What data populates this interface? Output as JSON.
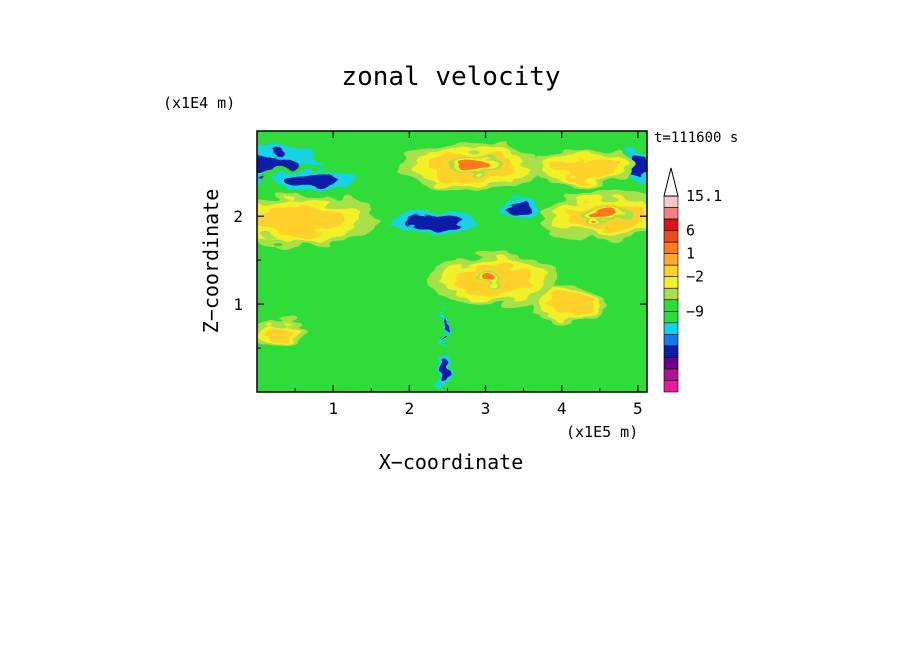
{
  "chart_data": {
    "type": "heatmap",
    "title": "zonal velocity",
    "xlabel": "X−coordinate",
    "ylabel": "Z−coordinate",
    "x_unit": "(x1E5 m)",
    "y_unit": "(x1E4 m)",
    "time_label": "t=111600 s",
    "xlim": [
      0,
      5.12
    ],
    "ylim": [
      0,
      2.97
    ],
    "x_ticks": [
      1,
      2,
      3,
      4,
      5
    ],
    "y_ticks": [
      1,
      2
    ],
    "colorbar": {
      "labels": [
        "15.1",
        "6",
        "1",
        "−2",
        "−9"
      ],
      "levels": [
        -15,
        -12,
        -9,
        -6,
        -3,
        -2,
        -1,
        0,
        1,
        2,
        3,
        4,
        6,
        8,
        10,
        12,
        15.1
      ],
      "colors": [
        "#e8199a",
        "#b0158e",
        "#6a008c",
        "#0a1fa8",
        "#1478f0",
        "#12d4e6",
        "#2fdc3a",
        "#2fdc3a",
        "#a8e04a",
        "#f2f028",
        "#ffd12a",
        "#ffaa2a",
        "#ff7a1c",
        "#f04a1c",
        "#d9161c",
        "#f08282",
        "#f7c6c6"
      ]
    },
    "regions": [
      {
        "value": -6,
        "x": 0.15,
        "z": 2.58,
        "rx": 0.45,
        "rz": 0.13
      },
      {
        "value": -6,
        "x": 0.75,
        "z": 2.42,
        "rx": 0.35,
        "rz": 0.08
      },
      {
        "value": -6,
        "x": 2.3,
        "z": 1.93,
        "rx": 0.35,
        "rz": 0.07
      },
      {
        "value": -6,
        "x": 3.42,
        "z": 2.08,
        "rx": 0.17,
        "rz": 0.07
      },
      {
        "value": -6,
        "x": 5.02,
        "z": 2.6,
        "rx": 0.12,
        "rz": 0.12
      },
      {
        "value": -6,
        "x": 2.46,
        "z": 0.22,
        "rx": 0.06,
        "rz": 0.12
      },
      {
        "value": -6,
        "x": 2.45,
        "z": 0.75,
        "rx": 0.03,
        "rz": 0.12
      },
      {
        "value": 3,
        "x": 2.8,
        "z": 2.56,
        "rx": 0.55,
        "rz": 0.16
      },
      {
        "value": 6,
        "x": 2.85,
        "z": 2.58,
        "rx": 0.2,
        "rz": 0.07
      },
      {
        "value": 3,
        "x": 4.3,
        "z": 2.55,
        "rx": 0.4,
        "rz": 0.12
      },
      {
        "value": 3,
        "x": 0.55,
        "z": 1.95,
        "rx": 0.6,
        "rz": 0.17
      },
      {
        "value": 3,
        "x": 4.55,
        "z": 2.0,
        "rx": 0.5,
        "rz": 0.15
      },
      {
        "value": 6,
        "x": 4.55,
        "z": 2.02,
        "rx": 0.22,
        "rz": 0.06
      },
      {
        "value": 3,
        "x": 3.1,
        "z": 1.28,
        "rx": 0.5,
        "rz": 0.18
      },
      {
        "value": 6,
        "x": 3.05,
        "z": 1.3,
        "rx": 0.12,
        "rz": 0.05
      },
      {
        "value": 3,
        "x": 4.1,
        "z": 1.0,
        "rx": 0.3,
        "rz": 0.12
      },
      {
        "value": 3,
        "x": 0.3,
        "z": 0.65,
        "rx": 0.2,
        "rz": 0.1
      }
    ]
  }
}
